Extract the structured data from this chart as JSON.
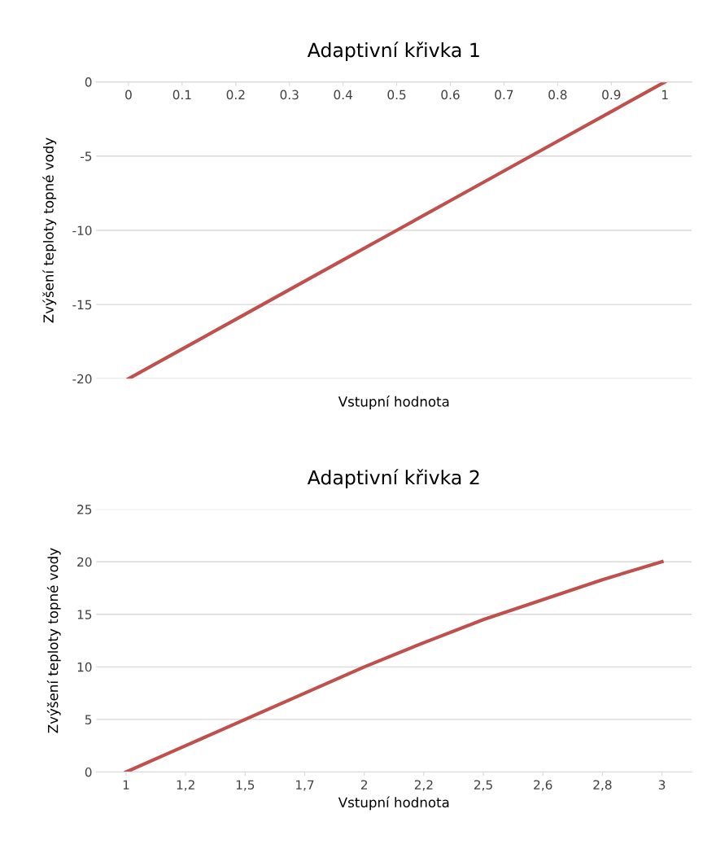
{
  "chart_data": [
    {
      "type": "line",
      "title": "Adaptivní křivka 1",
      "xlabel": "Vstupní hodnota",
      "ylabel": "Zvýšení teploty topné vody",
      "categories": [
        "0",
        "0.1",
        "0.2",
        "0.3",
        "0.4",
        "0.5",
        "0.6",
        "0.7",
        "0.8",
        "0.9",
        "1"
      ],
      "series": [
        {
          "color": "#c0504d",
          "values": [
            -20,
            -18,
            -16,
            -14,
            -12,
            -10,
            -8,
            -6,
            -4,
            -2,
            0
          ]
        }
      ],
      "ylim": [
        -20,
        0
      ],
      "yticks": [
        -20,
        -15,
        -10,
        -5,
        0
      ],
      "grid": "y",
      "marker": "none",
      "line_style": "solid"
    },
    {
      "type": "line",
      "title": "Adaptivní křivka 2",
      "xlabel": "Vstupní hodnota",
      "ylabel": "Zvýšení teploty topné vody",
      "categories": [
        "1",
        "1,2",
        "1,5",
        "1,7",
        "2",
        "2,2",
        "2,5",
        "2,6",
        "2,8",
        "3"
      ],
      "series": [
        {
          "color": "#c0504d",
          "values": [
            0,
            2.5,
            5,
            7.5,
            10,
            12.3,
            14.5,
            16.4,
            18.3,
            20
          ]
        }
      ],
      "ylim": [
        0,
        25
      ],
      "yticks": [
        0,
        5,
        10,
        15,
        20,
        25
      ],
      "grid": "y",
      "marker": "none",
      "line_style": "solid"
    }
  ]
}
